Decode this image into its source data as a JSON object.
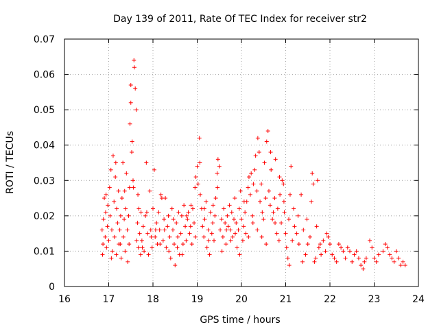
{
  "chart_data": {
    "type": "scatter",
    "title": "Day 139 of 2011, Rate Of TEC Index for receiver str2",
    "xlabel": "GPS time / hours",
    "ylabel": "ROTI / TECUs",
    "xlim": [
      16,
      24
    ],
    "ylim": [
      0,
      0.07
    ],
    "x_ticks": [
      "16",
      "17",
      "18",
      "19",
      "20",
      "21",
      "22",
      "23",
      "24"
    ],
    "y_ticks": [
      "0",
      "0.01",
      "0.02",
      "0.03",
      "0.04",
      "0.05",
      "0.06",
      "0.07"
    ],
    "grid": true,
    "marker": "+",
    "color": "#ff0000",
    "series": [
      {
        "name": "str2",
        "points": [
          [
            16.85,
            0.016
          ],
          [
            16.87,
            0.012
          ],
          [
            16.88,
            0.019
          ],
          [
            16.9,
            0.025
          ],
          [
            16.92,
            0.014
          ],
          [
            16.93,
            0.021
          ],
          [
            16.95,
            0.011
          ],
          [
            16.97,
            0.017
          ],
          [
            16.98,
            0.023
          ],
          [
            17.0,
            0.013
          ],
          [
            17.02,
            0.028
          ],
          [
            17.03,
            0.02
          ],
          [
            17.05,
            0.033
          ],
          [
            17.07,
            0.016
          ],
          [
            17.08,
            0.01
          ],
          [
            17.1,
            0.037
          ],
          [
            17.12,
            0.024
          ],
          [
            17.13,
            0.014
          ],
          [
            17.15,
            0.031
          ],
          [
            17.17,
            0.009
          ],
          [
            17.18,
            0.022
          ],
          [
            17.2,
            0.018
          ],
          [
            17.22,
            0.027
          ],
          [
            17.23,
            0.012
          ],
          [
            17.25,
            0.016
          ],
          [
            17.27,
            0.02
          ],
          [
            17.28,
            0.008
          ],
          [
            17.3,
            0.025
          ],
          [
            17.32,
            0.035
          ],
          [
            17.33,
            0.014
          ],
          [
            17.35,
            0.019
          ],
          [
            17.37,
            0.01
          ],
          [
            17.38,
            0.022
          ],
          [
            17.4,
            0.032
          ],
          [
            17.42,
            0.016
          ],
          [
            17.43,
            0.007
          ],
          [
            17.45,
            0.02
          ],
          [
            17.47,
            0.028
          ],
          [
            17.48,
            0.046
          ],
          [
            17.5,
            0.057
          ],
          [
            17.5,
            0.052
          ],
          [
            17.52,
            0.038
          ],
          [
            17.53,
            0.041
          ],
          [
            17.55,
            0.03
          ],
          [
            17.57,
            0.064
          ],
          [
            17.58,
            0.062
          ],
          [
            17.6,
            0.056
          ],
          [
            17.62,
            0.05
          ],
          [
            17.63,
            0.013
          ],
          [
            17.65,
            0.018
          ],
          [
            17.67,
            0.011
          ],
          [
            17.68,
            0.022
          ],
          [
            17.7,
            0.015
          ],
          [
            17.72,
            0.009
          ],
          [
            17.73,
            0.021
          ],
          [
            17.75,
            0.013
          ],
          [
            17.78,
            0.017
          ],
          [
            17.8,
            0.01
          ],
          [
            17.83,
            0.02
          ],
          [
            17.85,
            0.035
          ],
          [
            17.88,
            0.015
          ],
          [
            17.9,
            0.009
          ],
          [
            17.93,
            0.027
          ],
          [
            17.95,
            0.016
          ],
          [
            17.98,
            0.011
          ],
          [
            18.0,
            0.022
          ],
          [
            18.03,
            0.033
          ],
          [
            18.05,
            0.014
          ],
          [
            18.08,
            0.018
          ],
          [
            18.1,
            0.012
          ],
          [
            18.13,
            0.021
          ],
          [
            18.15,
            0.016
          ],
          [
            18.18,
            0.026
          ],
          [
            18.2,
            0.025
          ],
          [
            18.23,
            0.013
          ],
          [
            18.25,
            0.019
          ],
          [
            18.28,
            0.025
          ],
          [
            18.3,
            0.011
          ],
          [
            18.33,
            0.017
          ],
          [
            18.35,
            0.02
          ],
          [
            18.38,
            0.014
          ],
          [
            18.4,
            0.008
          ],
          [
            18.43,
            0.022
          ],
          [
            18.45,
            0.016
          ],
          [
            18.48,
            0.012
          ],
          [
            18.5,
            0.006
          ],
          [
            18.53,
            0.018
          ],
          [
            18.55,
            0.011
          ],
          [
            18.58,
            0.021
          ],
          [
            18.6,
            0.009
          ],
          [
            18.63,
            0.015
          ],
          [
            18.65,
            0.02
          ],
          [
            18.68,
            0.012
          ],
          [
            18.7,
            0.023
          ],
          [
            18.73,
            0.017
          ],
          [
            18.75,
            0.013
          ],
          [
            18.78,
            0.019
          ],
          [
            18.8,
            0.021
          ],
          [
            18.83,
            0.015
          ],
          [
            18.85,
            0.017
          ],
          [
            18.88,
            0.012
          ],
          [
            18.9,
            0.022
          ],
          [
            18.93,
            0.018
          ],
          [
            18.95,
            0.028
          ],
          [
            18.97,
            0.031
          ],
          [
            19.0,
            0.034
          ],
          [
            19.02,
            0.029
          ],
          [
            19.05,
            0.042
          ],
          [
            19.07,
            0.026
          ],
          [
            19.1,
            0.022
          ],
          [
            19.12,
            0.017
          ],
          [
            19.15,
            0.014
          ],
          [
            19.17,
            0.019
          ],
          [
            19.2,
            0.024
          ],
          [
            19.22,
            0.011
          ],
          [
            19.25,
            0.016
          ],
          [
            19.28,
            0.009
          ],
          [
            19.3,
            0.021
          ],
          [
            19.33,
            0.015
          ],
          [
            19.35,
            0.018
          ],
          [
            19.38,
            0.013
          ],
          [
            19.4,
            0.02
          ],
          [
            19.42,
            0.025
          ],
          [
            19.45,
            0.032
          ],
          [
            19.47,
            0.036
          ],
          [
            19.5,
            0.034
          ],
          [
            19.52,
            0.016
          ],
          [
            19.55,
            0.019
          ],
          [
            19.58,
            0.014
          ],
          [
            19.6,
            0.022
          ],
          [
            19.63,
            0.018
          ],
          [
            19.65,
            0.012
          ],
          [
            19.68,
            0.02
          ],
          [
            19.7,
            0.017
          ],
          [
            19.73,
            0.023
          ],
          [
            19.75,
            0.016
          ],
          [
            19.78,
            0.021
          ],
          [
            19.8,
            0.014
          ],
          [
            19.83,
            0.019
          ],
          [
            19.85,
            0.025
          ],
          [
            19.88,
            0.018
          ],
          [
            19.9,
            0.011
          ],
          [
            19.93,
            0.016
          ],
          [
            19.95,
            0.022
          ],
          [
            19.98,
            0.027
          ],
          [
            20.0,
            0.019
          ],
          [
            20.03,
            0.013
          ],
          [
            20.05,
            0.017
          ],
          [
            20.08,
            0.021
          ],
          [
            20.1,
            0.015
          ],
          [
            20.12,
            0.024
          ],
          [
            20.15,
            0.028
          ],
          [
            20.17,
            0.031
          ],
          [
            20.2,
            0.026
          ],
          [
            20.22,
            0.032
          ],
          [
            20.25,
            0.02
          ],
          [
            20.27,
            0.029
          ],
          [
            20.3,
            0.033
          ],
          [
            20.32,
            0.037
          ],
          [
            20.35,
            0.027
          ],
          [
            20.37,
            0.042
          ],
          [
            20.4,
            0.038
          ],
          [
            20.42,
            0.024
          ],
          [
            20.45,
            0.029
          ],
          [
            20.47,
            0.021
          ],
          [
            20.5,
            0.019
          ],
          [
            20.52,
            0.035
          ],
          [
            20.55,
            0.025
          ],
          [
            20.57,
            0.041
          ],
          [
            20.6,
            0.044
          ],
          [
            20.62,
            0.027
          ],
          [
            20.65,
            0.023
          ],
          [
            20.67,
            0.033
          ],
          [
            20.7,
            0.019
          ],
          [
            20.72,
            0.021
          ],
          [
            20.75,
            0.025
          ],
          [
            20.77,
            0.036
          ],
          [
            20.8,
            0.015
          ],
          [
            20.82,
            0.022
          ],
          [
            20.85,
            0.013
          ],
          [
            20.87,
            0.026
          ],
          [
            20.9,
            0.018
          ],
          [
            20.92,
            0.03
          ],
          [
            20.95,
            0.029
          ],
          [
            20.97,
            0.021
          ],
          [
            21.0,
            0.015
          ],
          [
            21.02,
            0.011
          ],
          [
            21.05,
            0.008
          ],
          [
            21.07,
            0.019
          ],
          [
            21.1,
            0.026
          ],
          [
            21.12,
            0.034
          ],
          [
            21.15,
            0.013
          ],
          [
            21.2,
            0.017
          ],
          [
            21.25,
            0.015
          ],
          [
            21.3,
            0.012
          ],
          [
            21.35,
            0.026
          ],
          [
            21.4,
            0.016
          ],
          [
            21.45,
            0.009
          ],
          [
            21.5,
            0.012
          ],
          [
            21.55,
            0.014
          ],
          [
            21.6,
            0.032
          ],
          [
            21.62,
            0.029
          ],
          [
            21.65,
            0.007
          ],
          [
            21.7,
            0.017
          ],
          [
            21.72,
            0.03
          ],
          [
            21.75,
            0.011
          ],
          [
            21.8,
            0.009
          ],
          [
            21.85,
            0.013
          ],
          [
            21.9,
            0.01
          ],
          [
            21.93,
            0.015
          ],
          [
            21.96,
            0.014
          ],
          [
            22.0,
            0.012
          ],
          [
            22.05,
            0.009
          ],
          [
            22.1,
            0.008
          ],
          [
            22.15,
            0.007
          ],
          [
            22.2,
            0.012
          ],
          [
            22.25,
            0.011
          ],
          [
            22.3,
            0.01
          ],
          [
            22.35,
            0.008
          ],
          [
            22.4,
            0.011
          ],
          [
            22.45,
            0.01
          ],
          [
            22.5,
            0.007
          ],
          [
            22.55,
            0.009
          ],
          [
            22.6,
            0.01
          ],
          [
            22.65,
            0.008
          ],
          [
            22.7,
            0.006
          ],
          [
            22.75,
            0.005
          ],
          [
            22.78,
            0.007
          ],
          [
            22.82,
            0.008
          ],
          [
            22.9,
            0.013
          ],
          [
            22.95,
            0.011
          ],
          [
            23.0,
            0.008
          ],
          [
            23.05,
            0.007
          ],
          [
            23.1,
            0.009
          ],
          [
            23.2,
            0.01
          ],
          [
            23.25,
            0.012
          ],
          [
            23.3,
            0.011
          ],
          [
            23.35,
            0.009
          ],
          [
            23.4,
            0.008
          ],
          [
            23.45,
            0.007
          ],
          [
            23.5,
            0.01
          ],
          [
            23.55,
            0.008
          ],
          [
            23.6,
            0.006
          ],
          [
            23.65,
            0.007
          ],
          [
            23.7,
            0.006
          ],
          [
            16.86,
            0.009
          ],
          [
            16.94,
            0.026
          ],
          [
            17.06,
            0.008
          ],
          [
            17.16,
            0.035
          ],
          [
            17.26,
            0.012
          ],
          [
            17.36,
            0.027
          ],
          [
            17.46,
            0.012
          ],
          [
            17.56,
            0.028
          ],
          [
            17.66,
            0.026
          ],
          [
            17.76,
            0.011
          ],
          [
            17.86,
            0.021
          ],
          [
            17.96,
            0.014
          ],
          [
            18.06,
            0.016
          ],
          [
            18.16,
            0.012
          ],
          [
            18.26,
            0.016
          ],
          [
            18.36,
            0.01
          ],
          [
            18.46,
            0.019
          ],
          [
            18.56,
            0.014
          ],
          [
            18.66,
            0.009
          ],
          [
            18.76,
            0.02
          ],
          [
            18.86,
            0.023
          ],
          [
            18.96,
            0.014
          ],
          [
            19.06,
            0.035
          ],
          [
            19.16,
            0.022
          ],
          [
            19.26,
            0.013
          ],
          [
            19.36,
            0.023
          ],
          [
            19.46,
            0.028
          ],
          [
            19.56,
            0.01
          ],
          [
            19.66,
            0.016
          ],
          [
            19.76,
            0.013
          ],
          [
            19.86,
            0.015
          ],
          [
            19.96,
            0.009
          ],
          [
            20.06,
            0.024
          ],
          [
            20.16,
            0.014
          ],
          [
            20.26,
            0.018
          ],
          [
            20.36,
            0.016
          ],
          [
            20.46,
            0.014
          ],
          [
            20.56,
            0.012
          ],
          [
            20.66,
            0.038
          ],
          [
            20.76,
            0.018
          ],
          [
            20.86,
            0.031
          ],
          [
            20.96,
            0.024
          ],
          [
            21.08,
            0.006
          ],
          [
            21.18,
            0.022
          ],
          [
            21.28,
            0.02
          ],
          [
            21.38,
            0.007
          ],
          [
            21.48,
            0.019
          ],
          [
            21.58,
            0.024
          ],
          [
            21.68,
            0.008
          ],
          [
            21.78,
            0.012
          ]
        ]
      }
    ]
  }
}
